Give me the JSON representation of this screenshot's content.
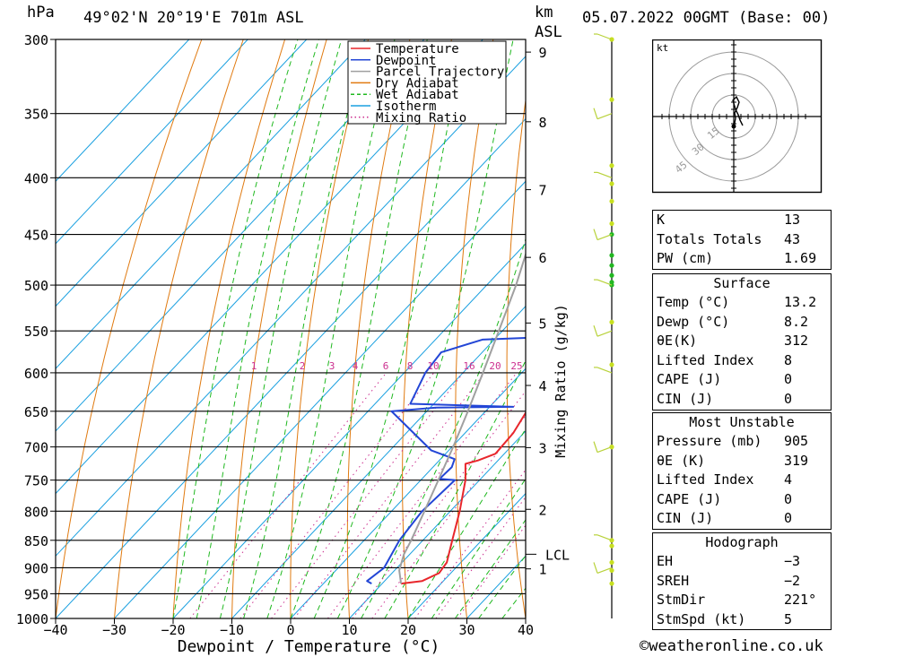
{
  "header": {
    "pressure_unit": "hPa",
    "location": "49°02'N  20°19'E  701m  ASL",
    "km_label": "km",
    "asl_label": "ASL",
    "datetime": "05.07.2022  00GMT  (Base: 00)"
  },
  "chart_data": {
    "type": "skew-t",
    "xlabel": "Dewpoint / Temperature (°C)",
    "ylabel": "hPa",
    "mixing_ratio_label": "Mixing Ratio (g/kg)",
    "xlim": [
      -40,
      40
    ],
    "ylim_hpa": [
      1000,
      300
    ],
    "x_ticks": [
      "−40",
      "−30",
      "−20",
      "−10",
      "0",
      "10",
      "20",
      "30",
      "40"
    ],
    "pressure_levels": [
      300,
      350,
      400,
      450,
      500,
      550,
      600,
      650,
      700,
      750,
      800,
      850,
      900,
      950,
      1000
    ],
    "km_ticks": [
      {
        "label": "1",
        "p": 902
      },
      {
        "label": "2",
        "p": 797
      },
      {
        "label": "3",
        "p": 701
      },
      {
        "label": "4",
        "p": 616
      },
      {
        "label": "5",
        "p": 541
      },
      {
        "label": "6",
        "p": 472
      },
      {
        "label": "7",
        "p": 410
      },
      {
        "label": "8",
        "p": 356
      },
      {
        "label": "9",
        "p": 308
      }
    ],
    "lcl": {
      "label": "LCL",
      "p": 875
    },
    "mixing_ratio_ticks": [
      "1",
      "2",
      "3",
      "4",
      "6",
      "8",
      "10",
      "16",
      "20",
      "25"
    ],
    "legend": [
      {
        "name": "Temperature",
        "color": "#e8262b",
        "style": "solid"
      },
      {
        "name": "Dewpoint",
        "color": "#2346d6",
        "style": "solid"
      },
      {
        "name": "Parcel Trajectory",
        "color": "#a0a0a0",
        "style": "solid"
      },
      {
        "name": "Dry Adiabat",
        "color": "#e07a10",
        "style": "solid"
      },
      {
        "name": "Wet Adiabat",
        "color": "#1fb81f",
        "style": "dashed"
      },
      {
        "name": "Isotherm",
        "color": "#1aa0e0",
        "style": "solid"
      },
      {
        "name": "Mixing Ratio",
        "color": "#cc2f8f",
        "style": "dotted"
      }
    ],
    "legend_position": "top-right",
    "series": [
      {
        "name": "Temperature",
        "color": "#e8262b",
        "points": [
          [
            930,
            13.2
          ],
          [
            925,
            16.4
          ],
          [
            910,
            18.0
          ],
          [
            890,
            17.6
          ],
          [
            850,
            15.0
          ],
          [
            800,
            11.6
          ],
          [
            750,
            7.6
          ],
          [
            725,
            5.0
          ],
          [
            720,
            6.6
          ],
          [
            710,
            8.5
          ],
          [
            680,
            8.2
          ],
          [
            650,
            7.0
          ],
          [
            640,
            7.4
          ],
          [
            620,
            6.4
          ],
          [
            600,
            4.8
          ],
          [
            550,
            0.6
          ],
          [
            500,
            -5.2
          ],
          [
            470,
            -6.2
          ],
          [
            450,
            -9.0
          ],
          [
            420,
            -12.4
          ],
          [
            400,
            -14.8
          ],
          [
            350,
            -23.6
          ],
          [
            300,
            -32.6
          ]
        ]
      },
      {
        "name": "Dewpoint",
        "color": "#2346d6",
        "points": [
          [
            930,
            8.2
          ],
          [
            925,
            7.0
          ],
          [
            900,
            7.8
          ],
          [
            850,
            6.0
          ],
          [
            800,
            5.2
          ],
          [
            750,
            5.8
          ],
          [
            748,
            3.0
          ],
          [
            730,
            3.2
          ],
          [
            718,
            2.4
          ],
          [
            705,
            -3.0
          ],
          [
            650,
            -16.0
          ],
          [
            645,
            -9.0
          ],
          [
            644,
            4.0
          ],
          [
            640,
            -14.0
          ],
          [
            600,
            -16.4
          ],
          [
            575,
            -17.0
          ],
          [
            560,
            -12.0
          ],
          [
            556,
            2.4
          ],
          [
            500,
            -0.2
          ],
          [
            480,
            -3.0
          ],
          [
            470,
            -11.0
          ],
          [
            430,
            -8.0
          ],
          [
            400,
            -16.0
          ],
          [
            380,
            -14.0
          ],
          [
            360,
            -18.0
          ],
          [
            340,
            -16.0
          ],
          [
            320,
            -15.0
          ],
          [
            300,
            -19.0
          ]
        ]
      },
      {
        "name": "Parcel Trajectory",
        "color": "#a0a0a0",
        "points": [
          [
            930,
            13.2
          ],
          [
            905,
            10.8
          ],
          [
            875,
            9.0
          ],
          [
            850,
            8.0
          ],
          [
            800,
            5.6
          ],
          [
            750,
            3.0
          ],
          [
            700,
            0.2
          ],
          [
            650,
            -3.0
          ],
          [
            600,
            -6.6
          ],
          [
            550,
            -10.6
          ],
          [
            500,
            -15.0
          ],
          [
            450,
            -20.4
          ],
          [
            400,
            -26.6
          ],
          [
            350,
            -33.8
          ],
          [
            300,
            -42.0
          ]
        ]
      }
    ],
    "wind_profile_samples": [
      {
        "p": 300,
        "speed_kt": 15
      },
      {
        "p": 350,
        "speed_kt": 20
      },
      {
        "p": 400,
        "speed_kt": 10
      },
      {
        "p": 450,
        "speed_kt": 10
      },
      {
        "p": 500,
        "speed_kt": 15
      },
      {
        "p": 550,
        "speed_kt": 15
      },
      {
        "p": 600,
        "speed_kt": 10
      },
      {
        "p": 700,
        "speed_kt": 10
      },
      {
        "p": 850,
        "speed_kt": 5
      },
      {
        "p": 900,
        "speed_kt": 5
      }
    ]
  },
  "hodograph_panel": {
    "unit_label": "kt",
    "ring_labels": [
      "15",
      "30",
      "45"
    ]
  },
  "indices": {
    "rows": [
      {
        "label": "K",
        "value": "13"
      },
      {
        "label": "Totals Totals",
        "value": "43"
      },
      {
        "label": "PW (cm)",
        "value": "1.69"
      }
    ]
  },
  "surface": {
    "title": "Surface",
    "rows": [
      {
        "label": "Temp (°C)",
        "value": "13.2"
      },
      {
        "label": "Dewp (°C)",
        "value": "8.2"
      },
      {
        "label": "θE(K)",
        "value": "312"
      },
      {
        "label": "Lifted Index",
        "value": "8"
      },
      {
        "label": "CAPE (J)",
        "value": "0"
      },
      {
        "label": "CIN (J)",
        "value": "0"
      }
    ]
  },
  "most_unstable": {
    "title": "Most Unstable",
    "rows": [
      {
        "label": "Pressure (mb)",
        "value": "905"
      },
      {
        "label": "θE (K)",
        "value": "319"
      },
      {
        "label": "Lifted Index",
        "value": "4"
      },
      {
        "label": "CAPE (J)",
        "value": "0"
      },
      {
        "label": "CIN (J)",
        "value": "0"
      }
    ]
  },
  "hodograph": {
    "title": "Hodograph",
    "rows": [
      {
        "label": "EH",
        "value": "−3"
      },
      {
        "label": "SREH",
        "value": "−2"
      },
      {
        "label": "StmDir",
        "value": "221°"
      },
      {
        "label": "StmSpd (kt)",
        "value": "5"
      }
    ]
  },
  "copyright": "©weatheronline.co.uk"
}
